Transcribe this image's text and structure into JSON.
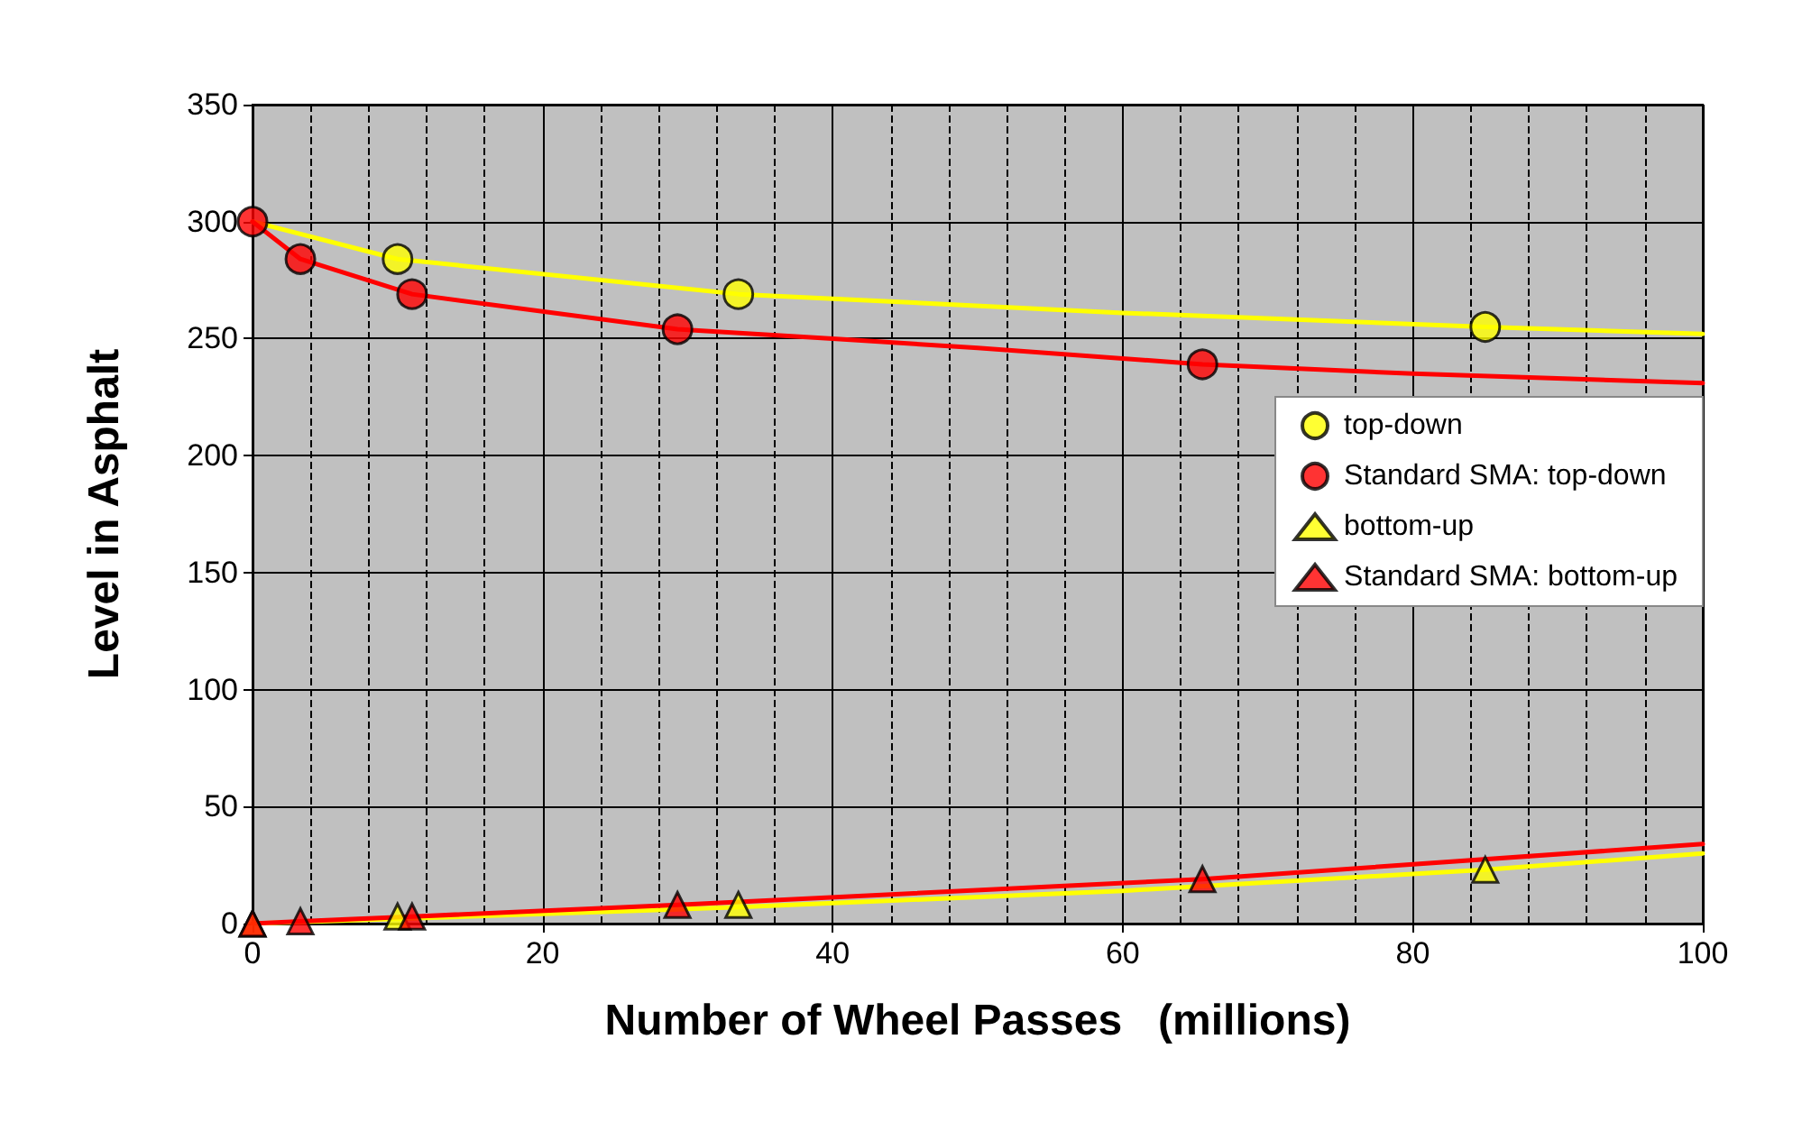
{
  "chart_data": {
    "type": "scatter",
    "xlabel": "Number of Wheel Passes   (millions)",
    "ylabel": "Level in Asphalt",
    "xlim": [
      0,
      100
    ],
    "xticks": [
      0,
      20,
      40,
      60,
      80,
      100
    ],
    "ylim": [
      0,
      350
    ],
    "yticks": [
      0,
      50,
      100,
      150,
      200,
      250,
      300,
      350
    ],
    "grid": true,
    "legend": "right",
    "series": [
      {
        "type": "line",
        "color": "#ffff00",
        "marker": "none",
        "x": [
          0,
          10,
          33.5,
          60,
          85,
          100
        ],
        "values": [
          300,
          284,
          269,
          261,
          255,
          252
        ]
      },
      {
        "type": "line",
        "color": "#ff0000",
        "marker": "none",
        "x": [
          0,
          3.3,
          11,
          29.3,
          40,
          50,
          65.5,
          80,
          100
        ],
        "values": [
          300,
          284,
          269,
          254,
          250,
          246,
          239,
          235,
          231
        ]
      },
      {
        "type": "line",
        "color": "#ffff00",
        "marker": "none",
        "x": [
          0,
          10,
          33.5,
          60,
          85,
          100
        ],
        "values": [
          0,
          2,
          7,
          14,
          23,
          30
        ]
      },
      {
        "type": "line",
        "color": "#ff0000",
        "marker": "none",
        "x": [
          0,
          3.3,
          11,
          29.3,
          65.5,
          100
        ],
        "values": [
          0,
          1,
          3,
          8,
          19,
          34
        ]
      },
      {
        "name": "top-down",
        "color": "#ffff00",
        "marker": "circle",
        "x": [
          10,
          33.5,
          85
        ],
        "values": [
          284,
          269,
          255
        ]
      },
      {
        "name": "Standard SMA: top-down",
        "color": "#ff0000",
        "marker": "circle",
        "x": [
          0,
          3.3,
          11,
          29.3,
          65.5
        ],
        "values": [
          300,
          284,
          269,
          254,
          239
        ]
      },
      {
        "name": "bottom-up",
        "color": "#ffff00",
        "marker": "triangle",
        "x": [
          0,
          10,
          33.5,
          85
        ],
        "values": [
          0,
          3,
          8,
          23
        ]
      },
      {
        "name": "Standard SMA: bottom-up",
        "color": "#ff0000",
        "marker": "triangle",
        "x": [
          0,
          3.3,
          11,
          29.3,
          65.5
        ],
        "values": [
          0,
          1,
          3,
          8,
          19
        ]
      }
    ]
  }
}
